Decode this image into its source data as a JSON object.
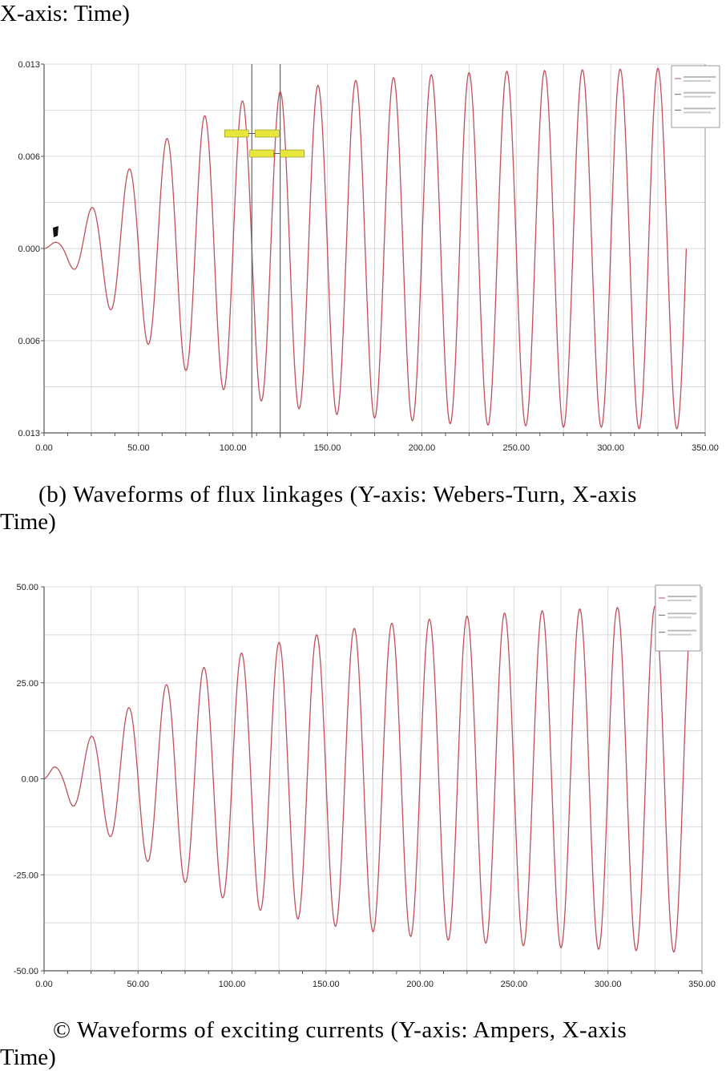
{
  "captions": {
    "top": "X-axis: Time)",
    "b_line1": "(b) Waveforms of flux linkages (Y-axis: Webers-Turn, X-axis",
    "b_line2": "Time)",
    "c_line1": "© Waveforms of exciting currents (Y-axis: Ampers, X-axis",
    "c_line2": "Time)"
  },
  "colors": {
    "trace": "#c0505a",
    "grid": "#d9d9d9",
    "frame": "#555555",
    "marker_fill": "#e6e63c",
    "cursor": "#666666"
  },
  "chart_data": [
    {
      "type": "line",
      "title": "",
      "xlabel": "",
      "ylabel": "",
      "xlim": [
        0,
        350
      ],
      "ylim": [
        -0.013,
        0.013
      ],
      "grid": true,
      "legend_placement": "top-right",
      "x_ticks": [
        0,
        50,
        100,
        150,
        200,
        250,
        300,
        350
      ],
      "x_tick_labels": [
        "0.00",
        "50.00",
        "100.00",
        "150.00",
        "200.00",
        "250.00",
        "300.00",
        "350.00"
      ],
      "y_ticks": [
        0.013,
        0.0065,
        0,
        -0.0065,
        -0.013
      ],
      "y_tick_labels": [
        "0.013",
        "0.006",
        "0.000",
        "0.006",
        "0.013"
      ],
      "series": [
        {
          "frequency_cycles_per_unit": 0.05,
          "x": [
            0,
            1,
            5,
            10,
            15,
            20,
            30,
            40,
            50,
            60,
            70,
            80,
            90,
            100,
            110,
            120,
            130,
            140,
            150,
            160,
            170,
            180,
            190,
            200,
            210,
            220,
            230,
            240,
            250,
            260,
            270,
            280,
            290,
            300,
            310,
            320,
            330,
            340
          ],
          "envelope": [
            0,
            0.0001,
            0.0004,
            0.0007,
            0.0014,
            0.0021,
            0.0036,
            0.005,
            0.0062,
            0.0073,
            0.0082,
            0.009,
            0.0097,
            0.0102,
            0.0106,
            0.0109,
            0.0112,
            0.0114,
            0.0116,
            0.0118,
            0.0119,
            0.012,
            0.0121,
            0.0122,
            0.0123,
            0.0124,
            0.0124,
            0.0125,
            0.0125,
            0.0125,
            0.0126,
            0.0126,
            0.0126,
            0.0126,
            0.0127,
            0.0127,
            0.0127,
            0.0127
          ]
        }
      ],
      "cursors_x": [
        110,
        125
      ]
    },
    {
      "type": "line",
      "title": "",
      "xlabel": "",
      "ylabel": "",
      "xlim": [
        0,
        350
      ],
      "ylim": [
        -50,
        50
      ],
      "grid": true,
      "legend_placement": "top-right",
      "x_ticks": [
        0,
        50,
        100,
        150,
        200,
        250,
        300,
        350
      ],
      "x_tick_labels": [
        "0.00",
        "50.00",
        "100.00",
        "150.00",
        "200.00",
        "250.00",
        "300.00",
        "350.00"
      ],
      "y_ticks": [
        50,
        25,
        0,
        -25,
        -50
      ],
      "y_tick_labels": [
        "50.00",
        "25.00",
        "0.00",
        "-25.00",
        "-50.00"
      ],
      "series": [
        {
          "frequency_cycles_per_unit": 0.05,
          "x": [
            0,
            1,
            5,
            10,
            15,
            20,
            30,
            40,
            50,
            60,
            70,
            80,
            90,
            100,
            110,
            120,
            130,
            140,
            150,
            160,
            170,
            180,
            190,
            200,
            210,
            220,
            230,
            240,
            250,
            260,
            270,
            280,
            290,
            300,
            310,
            320,
            330,
            340
          ],
          "envelope": [
            0,
            1,
            3,
            4,
            7,
            9,
            13,
            17,
            20,
            23,
            26,
            28,
            30,
            32,
            33.5,
            35,
            36,
            37,
            38,
            38.8,
            39.5,
            40.2,
            40.8,
            41.3,
            41.8,
            42.2,
            42.6,
            43,
            43.3,
            43.6,
            43.9,
            44.1,
            44.3,
            44.5,
            44.7,
            44.8,
            45,
            45.2
          ]
        }
      ]
    }
  ]
}
